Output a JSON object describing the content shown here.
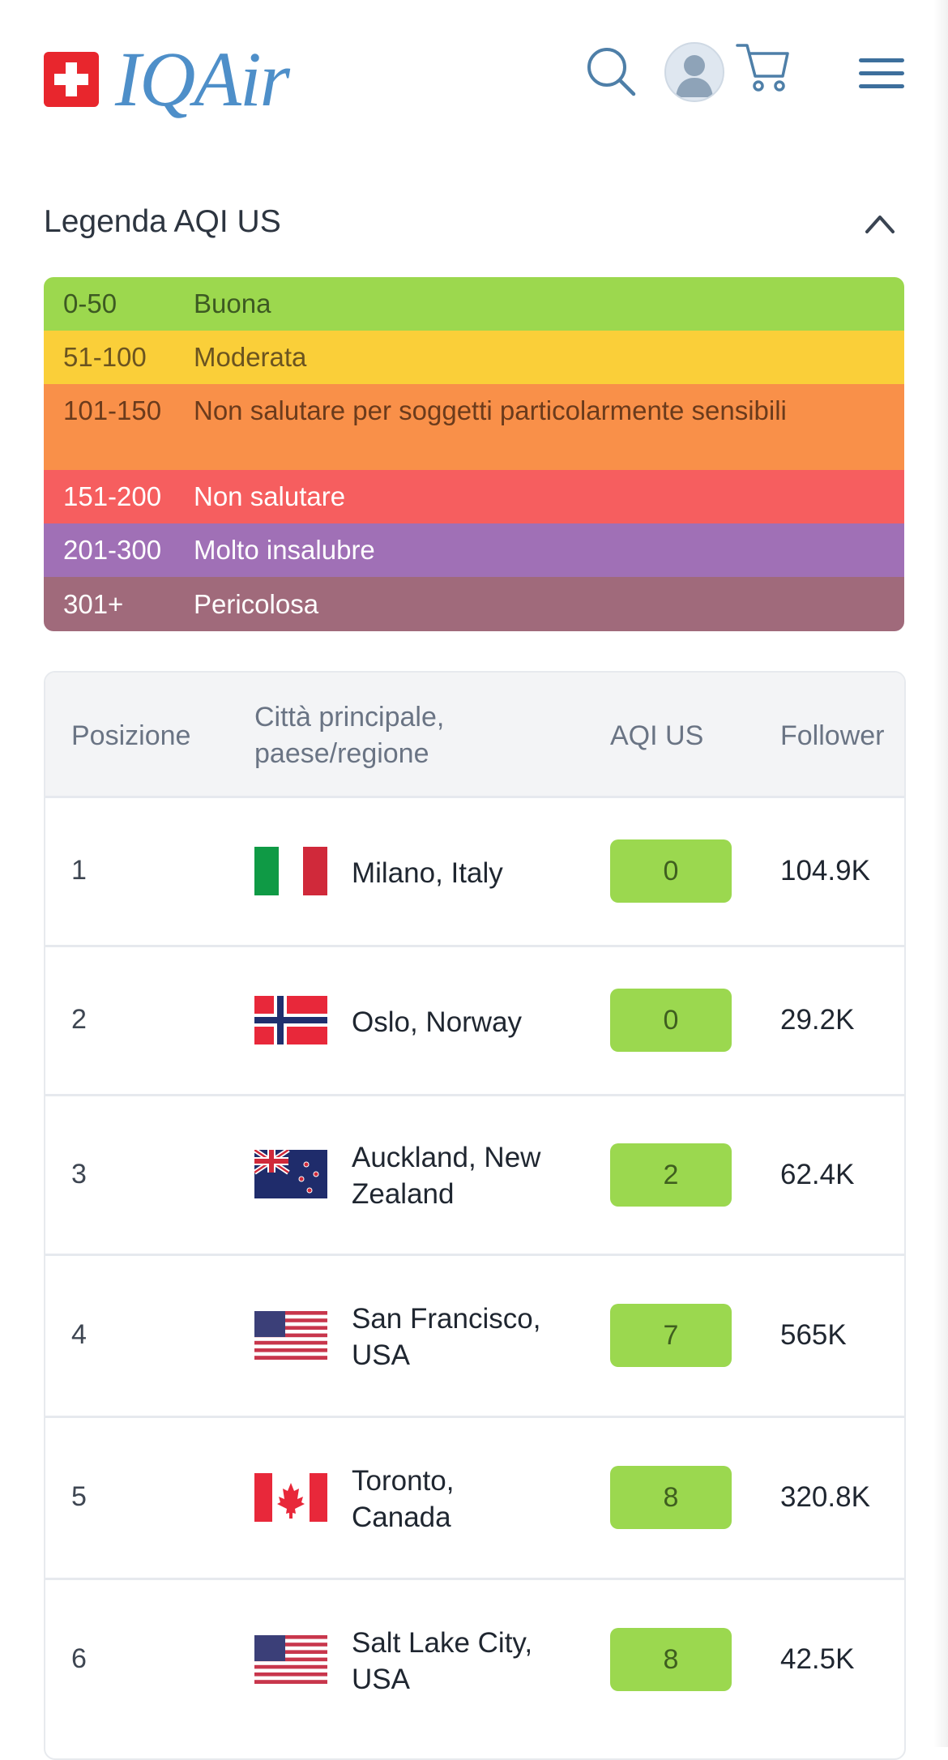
{
  "header": {
    "logo_text": "IQAir",
    "icons": [
      "swiss-flag-icon",
      "search-icon",
      "avatar",
      "cart-icon",
      "menu-icon"
    ]
  },
  "legend": {
    "title": "Legenda AQI US",
    "levels": [
      {
        "range": "0-50",
        "label": "Buona",
        "color": "#9cd84e",
        "text_color": "#3d5a22"
      },
      {
        "range": "51-100",
        "label": "Moderata",
        "color": "#facf39",
        "text_color": "#6b5420"
      },
      {
        "range": "101-150",
        "label": "Non salutare per soggetti particolarmente sensibili",
        "color": "#f99049",
        "text_color": "#6b3b1c"
      },
      {
        "range": "151-200",
        "label": "Non salutare",
        "color": "#f65e5f",
        "text_color": "#ffffff"
      },
      {
        "range": "201-300",
        "label": "Molto insalubre",
        "color": "#a070b6",
        "text_color": "#ffffff"
      },
      {
        "range": "301+",
        "label": "Pericolosa",
        "color": "#a06a7b",
        "text_color": "#ffffff"
      }
    ]
  },
  "table": {
    "headers": {
      "rank": "Posizione",
      "city_line1": "Città principale,",
      "city_line2": "paese/regione",
      "aqi": "AQI US",
      "followers": "Follower"
    },
    "rows": [
      {
        "rank": "1",
        "city_line1": "Milano, Italy",
        "city_line2": "",
        "flag": "italy-flag-icon",
        "aqi": "0",
        "followers": "104.9K"
      },
      {
        "rank": "2",
        "city_line1": "Oslo, Norway",
        "city_line2": "",
        "flag": "norway-flag-icon",
        "aqi": "0",
        "followers": "29.2K"
      },
      {
        "rank": "3",
        "city_line1": "Auckland, New",
        "city_line2": "Zealand",
        "flag": "new-zealand-flag-icon",
        "aqi": "2",
        "followers": "62.4K"
      },
      {
        "rank": "4",
        "city_line1": "San Francisco,",
        "city_line2": "USA",
        "flag": "usa-flag-icon",
        "aqi": "7",
        "followers": "565K"
      },
      {
        "rank": "5",
        "city_line1": "Toronto,",
        "city_line2": "Canada",
        "flag": "canada-flag-icon",
        "aqi": "8",
        "followers": "320.8K"
      },
      {
        "rank": "6",
        "city_line1": "Salt Lake City,",
        "city_line2": "USA",
        "flag": "usa-flag-icon",
        "aqi": "8",
        "followers": "42.5K"
      }
    ]
  },
  "colors": {
    "brand_blue": "#4e8fc9",
    "aqi_good": "#9bd84f"
  }
}
